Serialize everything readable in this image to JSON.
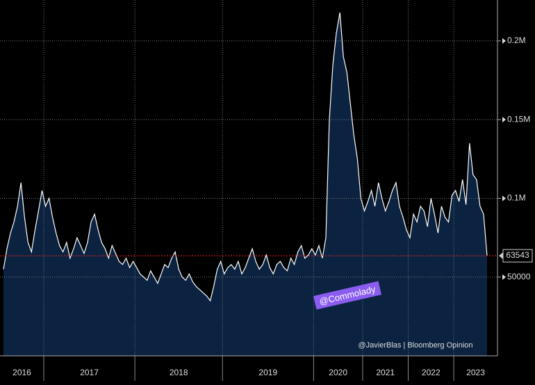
{
  "chart_data": {
    "type": "area",
    "categories": [
      "2016",
      "2017",
      "2018",
      "2019",
      "2020",
      "2021",
      "2022",
      "2023"
    ],
    "values": [
      [
        55000,
        68000,
        78000,
        85000,
        95000,
        110000,
        88000,
        72000,
        66000,
        80000,
        92000,
        105000
      ],
      [
        95000,
        100000,
        88000,
        78000,
        70000,
        66000,
        72000,
        62000,
        68000,
        75000,
        70000,
        65000,
        72000,
        85000,
        90000,
        80000,
        72000,
        68000,
        62000,
        70000,
        65000,
        60000,
        58000,
        62000,
        56000,
        60000
      ],
      [
        56000,
        52000,
        50000,
        48000,
        54000,
        50000,
        46000,
        52000,
        58000,
        56000,
        62000,
        66000,
        55000,
        50000,
        48000,
        52000,
        47000,
        44000,
        42000,
        40000,
        38000,
        35000,
        44000,
        55000,
        60000
      ],
      [
        52000,
        56000,
        58000,
        55000,
        60000,
        52000,
        56000,
        62000,
        68000,
        60000,
        55000,
        58000,
        64000,
        56000,
        52000,
        58000,
        60000,
        56000,
        54000,
        62000,
        58000,
        66000,
        70000,
        62000,
        64000,
        68000
      ],
      [
        64000,
        70000,
        62000,
        75000,
        150000,
        185000,
        205000,
        218000,
        190000,
        180000,
        160000,
        140000,
        125000,
        100000
      ],
      [
        92000,
        98000,
        105000,
        95000,
        110000,
        100000,
        92000,
        98000,
        105000,
        110000,
        95000,
        88000,
        80000
      ],
      [
        75000,
        90000,
        85000,
        95000,
        92000,
        82000,
        100000,
        90000,
        78000,
        95000,
        88000,
        85000,
        102000
      ],
      [
        105000,
        98000,
        112000,
        96000,
        135000,
        115000,
        112000,
        95000,
        90000,
        63543
      ]
    ],
    "line_color": "#ffffff",
    "fill_color": "#0b2340",
    "last_line_color": "#e02020",
    "ylim": [
      0,
      226000
    ],
    "yticks": [
      50000,
      {
        "value": 100000,
        "label": "0.1M"
      },
      {
        "value": 150000,
        "label": "0.15M"
      },
      {
        "value": 200000,
        "label": "0.2M"
      }
    ],
    "grid": true,
    "annotations": [
      "@Commolady",
      "@JavierBlas | Bloomberg Opinion"
    ]
  }
}
